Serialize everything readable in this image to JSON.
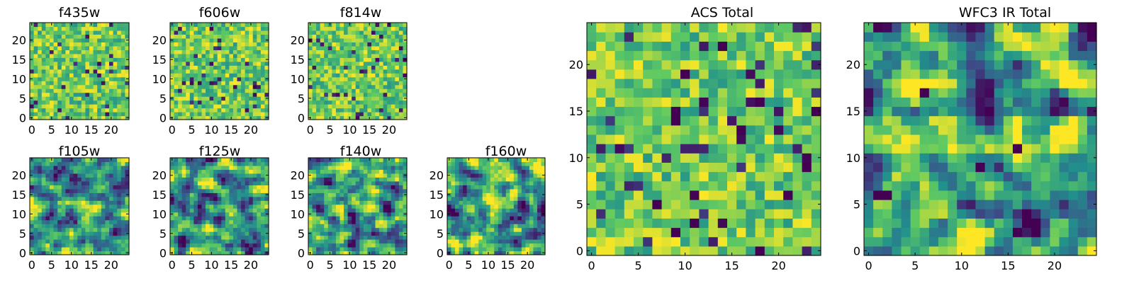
{
  "figure": {
    "colormap": "viridis",
    "colormap_stops": [
      "#440154",
      "#3b528b",
      "#21918c",
      "#5ec962",
      "#fde725"
    ]
  },
  "chart_data": [
    {
      "type": "heatmap",
      "title": "f435w",
      "size": [
        25,
        25
      ],
      "xticks": [
        0,
        5,
        10,
        15,
        20
      ],
      "yticks": [
        0,
        5,
        10,
        15,
        20
      ],
      "xlim": [
        -0.5,
        24.5
      ],
      "ylim": [
        -0.5,
        24.5
      ],
      "pattern": "uncorrelated pixel noise, mostly green-yellow with scattered dark pixels"
    },
    {
      "type": "heatmap",
      "title": "f606w",
      "size": [
        25,
        25
      ],
      "xticks": [
        0,
        5,
        10,
        15,
        20
      ],
      "yticks": [
        0,
        5,
        10,
        15,
        20
      ],
      "xlim": [
        -0.5,
        24.5
      ],
      "ylim": [
        -0.5,
        24.5
      ],
      "pattern": "uncorrelated pixel noise"
    },
    {
      "type": "heatmap",
      "title": "f814w",
      "size": [
        25,
        25
      ],
      "xticks": [
        0,
        5,
        10,
        15,
        20
      ],
      "yticks": [
        0,
        5,
        10,
        15,
        20
      ],
      "xlim": [
        -0.5,
        24.5
      ],
      "ylim": [
        -0.5,
        24.5
      ],
      "pattern": "uncorrelated pixel noise"
    },
    {
      "type": "heatmap",
      "title": "f105w",
      "size": [
        25,
        25
      ],
      "xticks": [
        0,
        5,
        10,
        15,
        20
      ],
      "yticks": [
        0,
        5,
        10,
        15,
        20
      ],
      "xlim": [
        -0.5,
        24.5
      ],
      "ylim": [
        -0.5,
        24.5
      ],
      "pattern": "spatially correlated noise"
    },
    {
      "type": "heatmap",
      "title": "f125w",
      "size": [
        25,
        25
      ],
      "xticks": [
        0,
        5,
        10,
        15,
        20
      ],
      "yticks": [
        0,
        5,
        10,
        15,
        20
      ],
      "xlim": [
        -0.5,
        24.5
      ],
      "ylim": [
        -0.5,
        24.5
      ],
      "pattern": "spatially correlated noise"
    },
    {
      "type": "heatmap",
      "title": "f140w",
      "size": [
        25,
        25
      ],
      "xticks": [
        0,
        5,
        10,
        15,
        20
      ],
      "yticks": [
        0,
        5,
        10,
        15,
        20
      ],
      "xlim": [
        -0.5,
        24.5
      ],
      "ylim": [
        -0.5,
        24.5
      ],
      "pattern": "spatially correlated noise"
    },
    {
      "type": "heatmap",
      "title": "f160w",
      "size": [
        25,
        25
      ],
      "xticks": [
        0,
        5,
        10,
        15,
        20
      ],
      "yticks": [
        0,
        5,
        10,
        15,
        20
      ],
      "xlim": [
        -0.5,
        24.5
      ],
      "ylim": [
        -0.5,
        24.5
      ],
      "pattern": "spatially correlated noise"
    },
    {
      "type": "heatmap",
      "title": "ACS Total",
      "size": [
        25,
        25
      ],
      "xticks": [
        0,
        5,
        10,
        15,
        20
      ],
      "yticks": [
        0,
        5,
        10,
        15,
        20
      ],
      "xlim": [
        -0.5,
        24.5
      ],
      "ylim": [
        -0.5,
        24.5
      ],
      "pattern": "uncorrelated pixel noise, mostly green-yellow",
      "dark_pixels": [
        [
          14,
          22
        ],
        [
          10,
          19
        ],
        [
          9,
          15
        ],
        [
          9,
          14
        ],
        [
          18,
          16
        ],
        [
          16,
          13
        ],
        [
          23,
          9
        ],
        [
          7,
          5
        ],
        [
          11,
          3
        ],
        [
          9,
          2
        ],
        [
          18,
          0
        ]
      ]
    },
    {
      "type": "heatmap",
      "title": "WFC3 IR Total",
      "size": [
        25,
        25
      ],
      "xticks": [
        0,
        5,
        10,
        15,
        20
      ],
      "yticks": [
        0,
        5,
        10,
        15,
        20
      ],
      "xlim": [
        -0.5,
        24.5
      ],
      "ylim": [
        -0.5,
        24.5
      ],
      "pattern": "spatially correlated noise, bright band around y 11-14",
      "dark_pixels": [
        [
          1,
          24
        ],
        [
          6,
          17
        ],
        [
          16,
          11
        ],
        [
          12,
          9
        ],
        [
          1,
          6
        ],
        [
          2,
          6
        ],
        [
          16,
          2
        ]
      ]
    }
  ]
}
